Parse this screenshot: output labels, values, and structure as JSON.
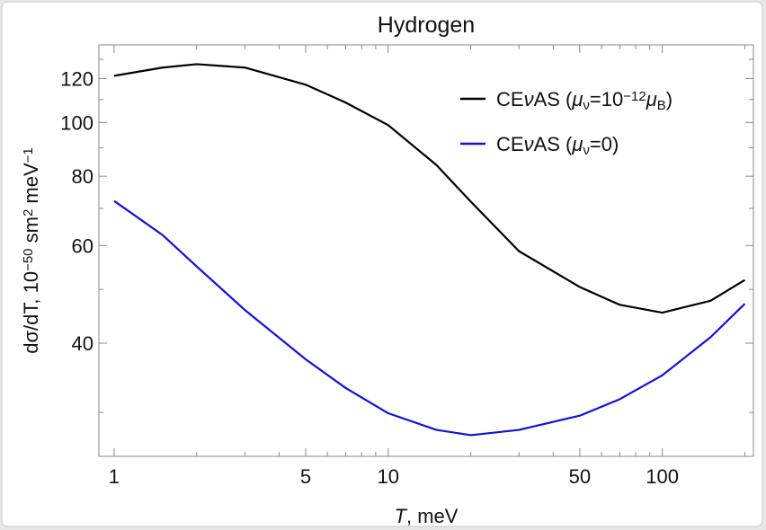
{
  "chart_data": {
    "type": "line",
    "title": "Hydrogen",
    "xlabel": [
      {
        "text": "T",
        "style": "i"
      },
      {
        "text": ",  meV"
      }
    ],
    "ylabel": [
      {
        "text": "dσ/dT, 10"
      },
      {
        "text": "−50",
        "style": "sup"
      },
      {
        "text": " sm"
      },
      {
        "text": "2",
        "style": "sup"
      },
      {
        "text": " meV"
      },
      {
        "text": "−1",
        "style": "sup"
      }
    ],
    "x": [
      1,
      1.5,
      2,
      3,
      5,
      7,
      10,
      15,
      20,
      30,
      50,
      70,
      100,
      150,
      200
    ],
    "series": [
      {
        "name": [
          {
            "text": "CE"
          },
          {
            "text": "ν",
            "style": "i"
          },
          {
            "text": "AS ("
          },
          {
            "text": "μ",
            "style": "i"
          },
          {
            "text": "ν",
            "style": "sub"
          },
          {
            "text": "=10"
          },
          {
            "text": "−12",
            "style": "sup"
          },
          {
            "text": "μ",
            "style": "i"
          },
          {
            "text": "B",
            "style": "sub"
          },
          {
            "text": ")"
          }
        ],
        "color": "#000000",
        "values": [
          121.4,
          125.6,
          127.4,
          125.6,
          117,
          108.6,
          98.9,
          83.8,
          72,
          58.6,
          50.5,
          46.9,
          45.4,
          47.7,
          52
        ]
      },
      {
        "name": [
          {
            "text": "CE"
          },
          {
            "text": "ν",
            "style": "i"
          },
          {
            "text": "AS ("
          },
          {
            "text": "μ",
            "style": "i"
          },
          {
            "text": "ν",
            "style": "sub"
          },
          {
            "text": "=0)"
          }
        ],
        "color": "#1010e0",
        "values": [
          72.2,
          62.7,
          55,
          45.9,
          37.4,
          33.2,
          29.9,
          27.9,
          27.3,
          27.9,
          29.6,
          31.7,
          35,
          41,
          47.1
        ]
      }
    ],
    "xscale": "log",
    "yscale": "log",
    "xlim": [
      0.88,
      215
    ],
    "ylim": [
      25,
      138
    ],
    "xticks": [
      1,
      5,
      10,
      50,
      100
    ],
    "xticks_minor": [
      2,
      3,
      4,
      6,
      7,
      8,
      9,
      20,
      30,
      40,
      60,
      70,
      80,
      90,
      200
    ],
    "yticks": [
      40,
      60,
      80,
      100,
      120
    ],
    "yticks_minor": [
      30,
      50,
      70,
      90,
      110,
      130
    ],
    "legend": "upper right"
  }
}
